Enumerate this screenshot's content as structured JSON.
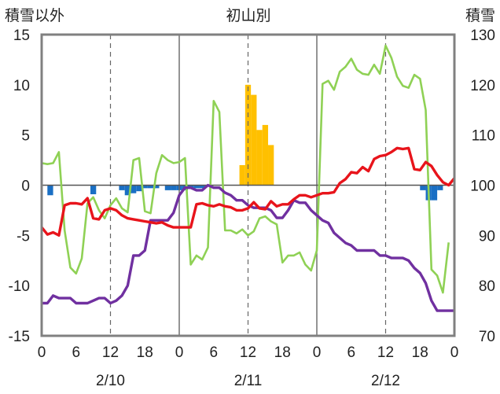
{
  "chart_data": {
    "type": "line",
    "title": "初山別",
    "left_axis_label": "積雪以外",
    "right_axis_label": "積雪",
    "left_ylim": [
      -15,
      15
    ],
    "left_ticks": [
      "15",
      "10",
      "5",
      "0",
      "-5",
      "-10",
      "-15"
    ],
    "right_ylim": [
      70,
      130
    ],
    "right_ticks": [
      "130",
      "120",
      "110",
      "100",
      "90",
      "80",
      "70"
    ],
    "x_range_hours": [
      0,
      72
    ],
    "x_tick_labels": [
      "0",
      "6",
      "12",
      "18",
      "0",
      "6",
      "12",
      "18",
      "0",
      "6",
      "12",
      "18",
      "0"
    ],
    "date_labels": [
      "2/10",
      "2/11",
      "2/12"
    ],
    "grid": "dashed vertical at 12h, solid vertical at day boundaries, solid zero line",
    "colors": {
      "temperature": "#e8141b",
      "wind": "#8fd155",
      "snow_depth": "#7030a0",
      "precip_positive": "#ffc000",
      "precip_negative": "#1a6fc4",
      "frame": "#808080"
    },
    "temperature": [
      [
        0,
        -4.2
      ],
      [
        1,
        -4.9
      ],
      [
        2,
        -4.7
      ],
      [
        3,
        -5.0
      ],
      [
        4,
        -2.0
      ],
      [
        5,
        -1.8
      ],
      [
        6,
        -1.8
      ],
      [
        7,
        -1.9
      ],
      [
        8,
        -1.3
      ],
      [
        9,
        -3.3
      ],
      [
        10,
        -3.4
      ],
      [
        11,
        -2.5
      ],
      [
        12,
        -2.3
      ],
      [
        13,
        -2.5
      ],
      [
        14,
        -3.0
      ],
      [
        15,
        -3.3
      ],
      [
        16,
        -3.4
      ],
      [
        17,
        -3.5
      ],
      [
        18,
        -3.6
      ],
      [
        19,
        -3.7
      ],
      [
        20,
        -3.8
      ],
      [
        21,
        -3.7
      ],
      [
        22,
        -4.0
      ],
      [
        23,
        -4.2
      ],
      [
        24,
        -4.2
      ],
      [
        25,
        -4.2
      ],
      [
        26,
        -4.2
      ],
      [
        27,
        -1.9
      ],
      [
        28,
        -1.8
      ],
      [
        29,
        -2.0
      ],
      [
        30,
        -2.1
      ],
      [
        31,
        -1.9
      ],
      [
        32,
        -2.1
      ],
      [
        33,
        -2.2
      ],
      [
        34,
        -2.5
      ],
      [
        35,
        -2.5
      ],
      [
        36,
        -2.3
      ],
      [
        37,
        -1.7
      ],
      [
        38,
        -2.3
      ],
      [
        39,
        -2.4
      ],
      [
        40,
        -1.6
      ],
      [
        41,
        -2.1
      ],
      [
        42,
        -1.9
      ],
      [
        43,
        -1.9
      ],
      [
        44,
        -1.4
      ],
      [
        45,
        -1.0
      ],
      [
        46,
        -1.0
      ],
      [
        47,
        -1.2
      ],
      [
        48,
        -1.0
      ],
      [
        49,
        -0.8
      ],
      [
        50,
        -0.8
      ],
      [
        51,
        -0.7
      ],
      [
        52,
        0.2
      ],
      [
        53,
        0.6
      ],
      [
        54,
        1.3
      ],
      [
        55,
        1.2
      ],
      [
        56,
        1.8
      ],
      [
        57,
        1.4
      ],
      [
        58,
        2.6
      ],
      [
        59,
        2.9
      ],
      [
        60,
        3.0
      ],
      [
        61,
        3.3
      ],
      [
        62,
        3.7
      ],
      [
        63,
        3.6
      ],
      [
        64,
        3.7
      ],
      [
        65,
        1.6
      ],
      [
        66,
        1.5
      ],
      [
        67,
        2.3
      ],
      [
        68,
        1.9
      ],
      [
        69,
        1.0
      ],
      [
        70,
        0.3
      ],
      [
        71,
        0.0
      ],
      [
        72,
        0.7
      ]
    ],
    "wind_speed": [
      [
        0,
        2.2
      ],
      [
        1,
        2.1
      ],
      [
        2,
        2.2
      ],
      [
        3,
        3.3
      ],
      [
        4,
        -4.5
      ],
      [
        5,
        -8.2
      ],
      [
        6,
        -8.8
      ],
      [
        7,
        -7.3
      ],
      [
        8,
        -1.8
      ],
      [
        9,
        -1.2
      ],
      [
        10,
        -2.5
      ],
      [
        11,
        -3.3
      ],
      [
        12,
        -2.0
      ],
      [
        13,
        -1.3
      ],
      [
        14,
        -2.3
      ],
      [
        15,
        -2.7
      ],
      [
        16,
        2.5
      ],
      [
        17,
        2.7
      ],
      [
        18,
        -2.6
      ],
      [
        19,
        -2.8
      ],
      [
        20,
        1.2
      ],
      [
        21,
        3.0
      ],
      [
        22,
        2.5
      ],
      [
        23,
        2.2
      ],
      [
        24,
        2.3
      ],
      [
        25,
        2.7
      ],
      [
        26,
        -7.9
      ],
      [
        27,
        -7.0
      ],
      [
        28,
        -7.4
      ],
      [
        29,
        -6.2
      ],
      [
        30,
        8.4
      ],
      [
        31,
        7.3
      ],
      [
        32,
        -4.5
      ],
      [
        33,
        -4.5
      ],
      [
        34,
        -4.8
      ],
      [
        35,
        -4.4
      ],
      [
        36,
        -5.0
      ],
      [
        37,
        -4.6
      ],
      [
        38,
        -3.3
      ],
      [
        39,
        -3.1
      ],
      [
        40,
        -3.6
      ],
      [
        41,
        -3.9
      ],
      [
        42,
        -7.7
      ],
      [
        43,
        -7.0
      ],
      [
        44,
        -7.0
      ],
      [
        45,
        -6.7
      ],
      [
        46,
        -7.9
      ],
      [
        47,
        -8.5
      ],
      [
        48,
        -6.5
      ],
      [
        49,
        10.1
      ],
      [
        50,
        10.4
      ],
      [
        51,
        9.5
      ],
      [
        52,
        11.3
      ],
      [
        53,
        11.8
      ],
      [
        54,
        12.6
      ],
      [
        55,
        11.5
      ],
      [
        56,
        11.1
      ],
      [
        57,
        11.0
      ],
      [
        58,
        12.0
      ],
      [
        59,
        11.1
      ],
      [
        60,
        13.9
      ],
      [
        61,
        12.7
      ],
      [
        62,
        10.8
      ],
      [
        63,
        9.9
      ],
      [
        64,
        9.7
      ],
      [
        65,
        11.0
      ],
      [
        66,
        10.6
      ],
      [
        67,
        7.5
      ],
      [
        68,
        -8.4
      ],
      [
        69,
        -9.0
      ],
      [
        70,
        -10.7
      ],
      [
        71,
        -5.7
      ]
    ],
    "snow_depth": [
      [
        0,
        76.5
      ],
      [
        1,
        76.5
      ],
      [
        2,
        78.0
      ],
      [
        3,
        77.5
      ],
      [
        4,
        77.5
      ],
      [
        5,
        77.5
      ],
      [
        6,
        76.5
      ],
      [
        7,
        76.5
      ],
      [
        8,
        76.5
      ],
      [
        9,
        77.0
      ],
      [
        10,
        77.5
      ],
      [
        11,
        77.5
      ],
      [
        12,
        76.5
      ],
      [
        13,
        77.0
      ],
      [
        14,
        78.0
      ],
      [
        15,
        80.0
      ],
      [
        16,
        86.0
      ],
      [
        17,
        86.0
      ],
      [
        18,
        87.0
      ],
      [
        19,
        93.0
      ],
      [
        20,
        93.0
      ],
      [
        21,
        93.0
      ],
      [
        22,
        93.0
      ],
      [
        23,
        94.5
      ],
      [
        24,
        98.0
      ],
      [
        25,
        99.5
      ],
      [
        26,
        99.5
      ],
      [
        27,
        99.0
      ],
      [
        28,
        99.0
      ],
      [
        29,
        100.0
      ],
      [
        30,
        99.5
      ],
      [
        31,
        99.5
      ],
      [
        32,
        98.5
      ],
      [
        33,
        98.0
      ],
      [
        34,
        97.0
      ],
      [
        35,
        97.0
      ],
      [
        36,
        96.0
      ],
      [
        37,
        95.5
      ],
      [
        38,
        95.5
      ],
      [
        39,
        95.5
      ],
      [
        40,
        95.0
      ],
      [
        41,
        93.5
      ],
      [
        42,
        93.5
      ],
      [
        43,
        95.0
      ],
      [
        44,
        97.0
      ],
      [
        45,
        96.5
      ],
      [
        46,
        96.5
      ],
      [
        47,
        95.0
      ],
      [
        48,
        94.0
      ],
      [
        49,
        93.0
      ],
      [
        50,
        92.5
      ],
      [
        51,
        90.5
      ],
      [
        52,
        89.5
      ],
      [
        53,
        88.5
      ],
      [
        54,
        88.0
      ],
      [
        55,
        87.0
      ],
      [
        56,
        87.0
      ],
      [
        57,
        87.0
      ],
      [
        58,
        87.0
      ],
      [
        59,
        86.0
      ],
      [
        60,
        86.0
      ],
      [
        61,
        85.5
      ],
      [
        62,
        85.5
      ],
      [
        63,
        85.5
      ],
      [
        64,
        85.0
      ],
      [
        65,
        83.5
      ],
      [
        66,
        82.5
      ],
      [
        67,
        80.5
      ],
      [
        68,
        77.0
      ],
      [
        69,
        75.0
      ],
      [
        70,
        75.0
      ],
      [
        71,
        75.0
      ],
      [
        72,
        75.0
      ]
    ],
    "precipitation_bars": [
      [
        1.5,
        -1.0
      ],
      [
        9.0,
        -0.9
      ],
      [
        14.0,
        -0.5
      ],
      [
        15.0,
        -1.0
      ],
      [
        16.0,
        -0.8
      ],
      [
        17.0,
        -0.6
      ],
      [
        18.0,
        -0.3
      ],
      [
        19.0,
        -0.3
      ],
      [
        20.0,
        -0.3
      ],
      [
        22.0,
        -0.5
      ],
      [
        23.0,
        -0.5
      ],
      [
        24.0,
        -0.5
      ],
      [
        25.0,
        -0.5
      ],
      [
        26.0,
        -0.3
      ],
      [
        27.0,
        -0.3
      ],
      [
        28.0,
        -0.3
      ],
      [
        35.0,
        2.0
      ],
      [
        36.0,
        10.0
      ],
      [
        37.0,
        9.0
      ],
      [
        38.0,
        5.5
      ],
      [
        39.0,
        6.0
      ],
      [
        40.0,
        4.0
      ],
      [
        66.5,
        -0.5
      ],
      [
        67.5,
        -1.5
      ],
      [
        68.5,
        -1.5
      ],
      [
        69.5,
        -0.5
      ]
    ]
  }
}
